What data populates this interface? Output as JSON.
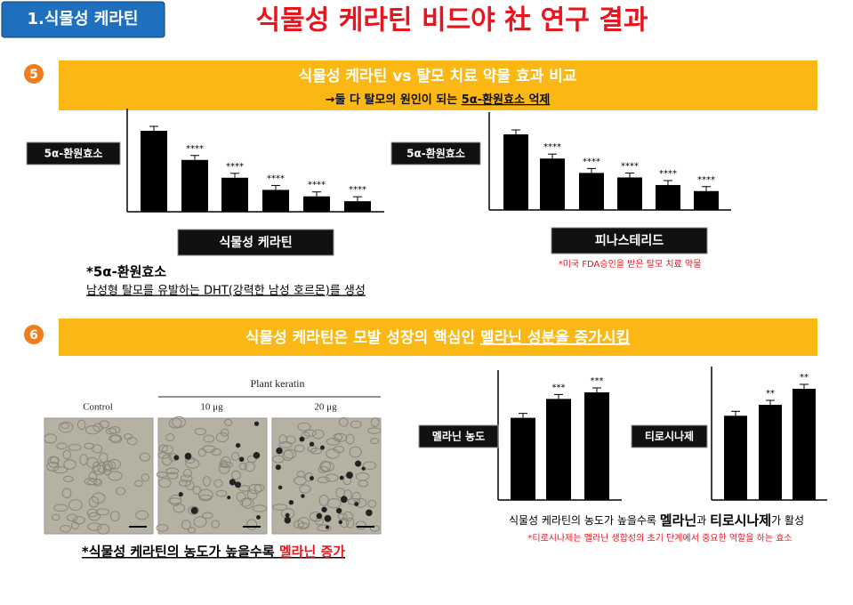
{
  "header": {
    "tag": "1.식물성 케라틴",
    "title": "식물성 케라틴 비드야 社 연구 결과"
  },
  "section5": {
    "number": "5",
    "banner": "식물성 케라틴 vs 탈모 치료 약물 효과 비교",
    "subtitle": {
      "lead": "→둘 다 탈모의 원인이 되는 ",
      "emphasis": "5α-환원효소 억제"
    },
    "footnote": {
      "term": "*5α-환원효소",
      "definition": "남성형 탈모를 유발하는 DHT(강력한 남성 호르몬)를 생성"
    },
    "drug_note": "*미국 FDA승인을 받은 탈모 치료 약물"
  },
  "section6": {
    "number": "6",
    "banner": {
      "lead": "식물성 케라틴은 모발 성장의 핵심인 ",
      "emphasis": "멜라닌 성분을 증가시킴"
    },
    "images": {
      "group": "Plant keratin",
      "labels": [
        "Control",
        "10 μg",
        "20 μg"
      ]
    },
    "image_caption": {
      "lead": "*식물성 케라틴의 농도가 높을수록 ",
      "emphasis": "멜라닌 증가"
    },
    "chart_caption": {
      "part1": "식물성 케라틴의 농도가 높을수록 ",
      "part2": "멜라닌",
      "part3": "과 ",
      "part4": "티로시나제",
      "part5": "가 활성"
    },
    "chart_note": "*티로시나제는 멜라닌 생합성의 초기 단계에서 중요한 역할을 하는 효소"
  },
  "charts": [
    {
      "type": "bar",
      "ylabel": "5α-환원효소",
      "label": "식물성 케라틴",
      "color": "#000000",
      "values": [
        100,
        64,
        42,
        27,
        19,
        13
      ],
      "stars": [
        null,
        "****",
        "****",
        "****",
        "****",
        "****"
      ]
    },
    {
      "type": "bar",
      "ylabel": "5α-환원효소",
      "label": "피나스테리드",
      "color": "#000000",
      "values": [
        100,
        68,
        49,
        43,
        33,
        25
      ],
      "stars": [
        null,
        "****",
        "****",
        "****",
        "****",
        "****"
      ]
    },
    {
      "type": "bar",
      "ylabel": "멜라닌 농도",
      "color": "#000000",
      "values": [
        100,
        123,
        131
      ],
      "stars": [
        null,
        "***",
        "***"
      ]
    },
    {
      "type": "bar",
      "ylabel": "티로시나제",
      "color": "#000000",
      "values": [
        100,
        113,
        132
      ],
      "stars": [
        null,
        "**",
        "**"
      ]
    }
  ]
}
